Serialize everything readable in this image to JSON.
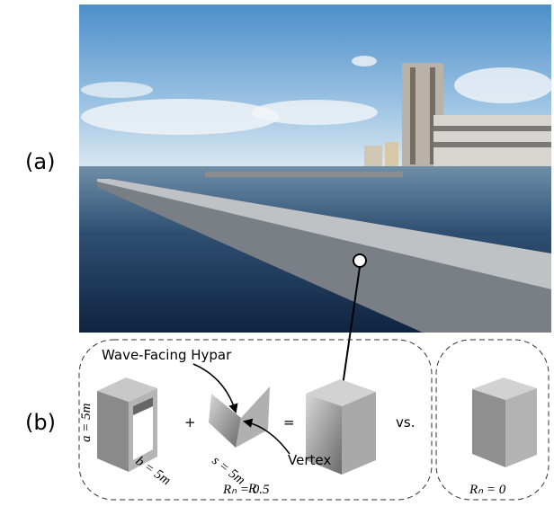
{
  "labels": {
    "a": "(a)",
    "b": "(b)"
  },
  "diagram": {
    "callout_hypar": "Wave-Facing Hypar",
    "callout_vertex": "Vertex",
    "plus": "+",
    "equals": "=",
    "versus": "vs.",
    "dim_a": "a = 5m",
    "dim_b": "b = 5m",
    "dim_s": "s = 5m",
    "dim_r": "R",
    "caption_left": "Rₙ = 0.5",
    "caption_right": "Rₙ = 0"
  }
}
